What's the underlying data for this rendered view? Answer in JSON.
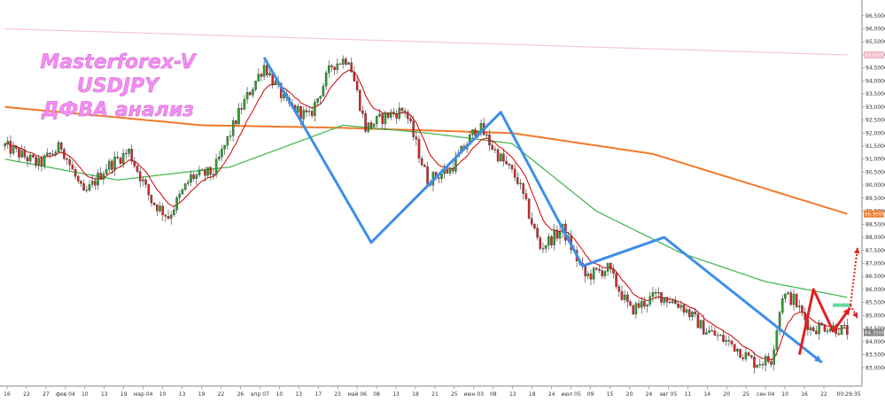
{
  "chart_data": {
    "type": "candlestick",
    "title_lines": [
      "Masterforex-V",
      "USDJPY",
      "ДФВА анализ"
    ],
    "ylim": [
      82.5,
      96.9
    ],
    "y_ticks": [
      "96,5000",
      "96,0000",
      "95,5000",
      "95,0000",
      "94,5000",
      "94,0000",
      "93,5000",
      "93,0000",
      "92,5000",
      "92,0000",
      "91,5000",
      "91,0000",
      "90,5000",
      "90,0000",
      "89,5000",
      "89,0000",
      "88,5000",
      "88,0000",
      "87,5000",
      "87,0000",
      "86,5000",
      "86,0000",
      "85,5000",
      "85,0000",
      "84,5000",
      "84,0000",
      "83,5000",
      "83,0000"
    ],
    "y_tick_values": [
      96.5,
      96,
      95.5,
      95,
      94.5,
      94,
      93.5,
      93,
      92.5,
      92,
      91.5,
      91,
      90.5,
      90,
      89.5,
      89,
      88.5,
      88,
      87.5,
      87,
      86.5,
      86,
      85.5,
      85,
      84.5,
      84,
      83.5,
      83
    ],
    "price_tags": [
      {
        "value": 95.0,
        "label": "95,0000",
        "color": "#f2b8c6"
      },
      {
        "value": 88.9,
        "label": "88,9000",
        "color": "#f07a2a"
      },
      {
        "value": 84.35,
        "label": "84,3500",
        "color": "#808080"
      }
    ],
    "x_labels": [
      "16",
      "22",
      "27",
      "фев 04",
      "10",
      "13",
      "19",
      "мар 04",
      "10",
      "13",
      "19",
      "22",
      "26",
      "апр 07",
      "10",
      "13",
      "17",
      "23",
      "май 06",
      "08",
      "13",
      "18",
      "21",
      "25",
      "июн 03",
      "08",
      "13",
      "18",
      "24",
      "июл 05",
      "09",
      "15",
      "20",
      "24",
      "авг 05",
      "11",
      "14",
      "20",
      "25",
      "сен 04",
      "10",
      "16",
      "22"
    ],
    "time_label": "00:29:35",
    "n_bars": 300,
    "price_start": 91.5,
    "close_keypoints": [
      [
        0,
        91.5
      ],
      [
        12,
        90.8
      ],
      [
        20,
        91.5
      ],
      [
        28,
        89.6
      ],
      [
        36,
        90.7
      ],
      [
        44,
        91.3
      ],
      [
        52,
        89.4
      ],
      [
        58,
        88.8
      ],
      [
        66,
        90.3
      ],
      [
        74,
        90.5
      ],
      [
        84,
        93.0
      ],
      [
        92,
        94.6
      ],
      [
        100,
        93.1
      ],
      [
        108,
        92.6
      ],
      [
        116,
        94.6
      ],
      [
        122,
        94.9
      ],
      [
        128,
        92.2
      ],
      [
        136,
        92.7
      ],
      [
        142,
        92.9
      ],
      [
        150,
        90.2
      ],
      [
        158,
        90.6
      ],
      [
        168,
        92.3
      ],
      [
        174,
        91.3
      ],
      [
        182,
        90.2
      ],
      [
        190,
        87.6
      ],
      [
        198,
        88.3
      ],
      [
        206,
        86.5
      ],
      [
        214,
        86.8
      ],
      [
        222,
        85.2
      ],
      [
        232,
        85.8
      ],
      [
        240,
        85.4
      ],
      [
        248,
        84.5
      ],
      [
        258,
        83.9
      ],
      [
        266,
        83.2
      ],
      [
        272,
        83.3
      ],
      [
        276,
        85.8
      ],
      [
        280,
        85.6
      ],
      [
        286,
        84.5
      ],
      [
        292,
        84.6
      ],
      [
        299,
        84.4
      ]
    ],
    "moving_averages": [
      {
        "color": "#f7c6d1",
        "points": [
          [
            0,
            96.0
          ],
          [
            299,
            95.0
          ]
        ]
      },
      {
        "color": "#f07a2a",
        "points": [
          [
            0,
            93.0
          ],
          [
            70,
            92.3
          ],
          [
            120,
            92.2
          ],
          [
            180,
            92.0
          ],
          [
            230,
            91.2
          ],
          [
            299,
            88.9
          ]
        ]
      },
      {
        "color": "#3cb44b",
        "points": [
          [
            0,
            91.0
          ],
          [
            40,
            90.2
          ],
          [
            80,
            90.7
          ],
          [
            120,
            92.3
          ],
          [
            150,
            92.0
          ],
          [
            180,
            91.6
          ],
          [
            210,
            89.0
          ],
          [
            240,
            87.4
          ],
          [
            270,
            86.3
          ],
          [
            299,
            85.7
          ]
        ]
      }
    ],
    "wave_lines": [
      {
        "color": "#3d8eea",
        "points": [
          [
            92,
            94.9
          ],
          [
            130,
            87.8
          ],
          [
            176,
            92.8
          ],
          [
            205,
            86.9
          ],
          [
            234,
            88.0
          ],
          [
            290,
            83.2
          ]
        ]
      },
      {
        "color": "#e02020",
        "points": [
          [
            282,
            83.5
          ],
          [
            287,
            86.0
          ],
          [
            294,
            84.4
          ],
          [
            300,
            85.3
          ]
        ]
      }
    ],
    "forecast": {
      "color": "#e02020",
      "up_target": 87.6,
      "down_target": 84.9,
      "level": 85.4
    }
  }
}
